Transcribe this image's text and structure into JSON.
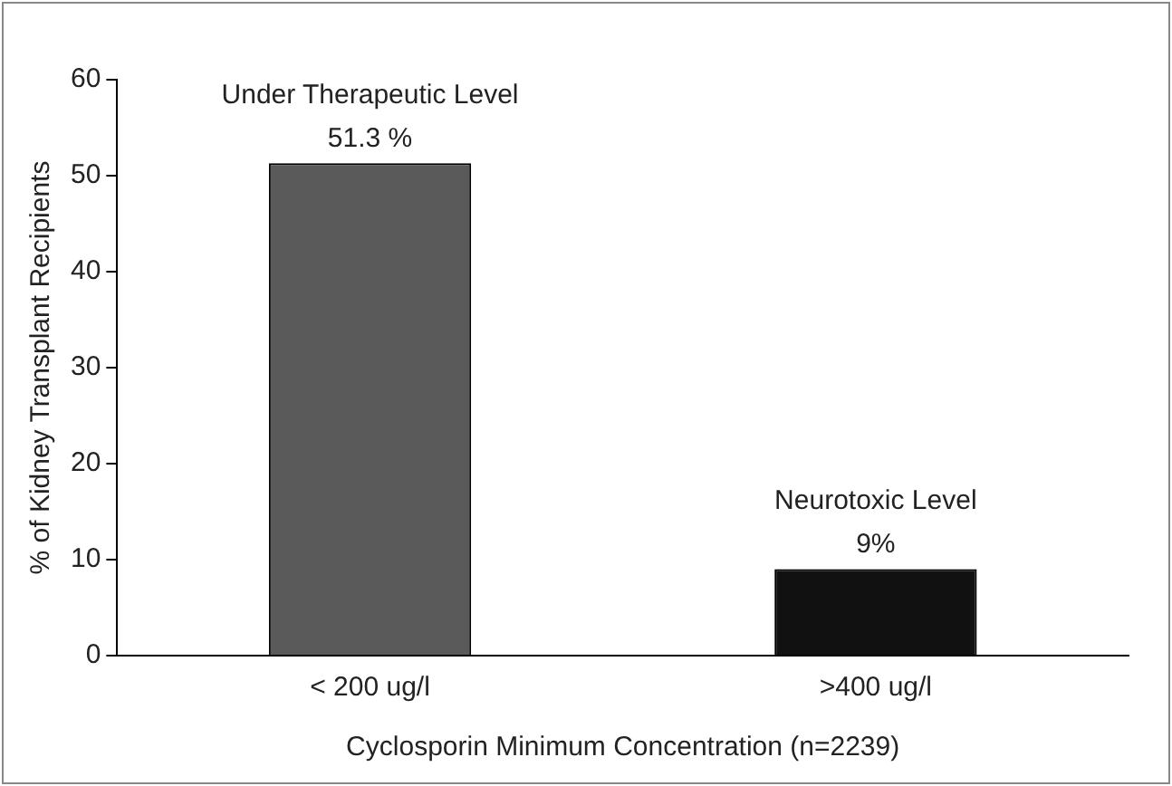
{
  "chart_data": {
    "type": "bar",
    "xlabel": "Cyclosporin Minimum Concentration (n=2239)",
    "ylabel": "% of Kidney Transplant Recipients",
    "categories": [
      "< 200 ug/l",
      ">400 ug/l"
    ],
    "values": [
      51.3,
      9
    ],
    "colors": [
      "#5a5a5a",
      "#111111"
    ],
    "value_labels": [
      "51.3 %",
      "9%"
    ],
    "annotations": [
      {
        "text": "Under Therapeutic Level",
        "x": "< 200 ug/l",
        "y": 51.3
      },
      {
        "text": "Neurotoxic Level",
        "x": ">400 ug/l",
        "y": 9
      }
    ],
    "ylim": [
      0,
      60
    ],
    "yticks": [
      0,
      10,
      20,
      30,
      40,
      50,
      60
    ],
    "grid": false,
    "legend": false
  }
}
